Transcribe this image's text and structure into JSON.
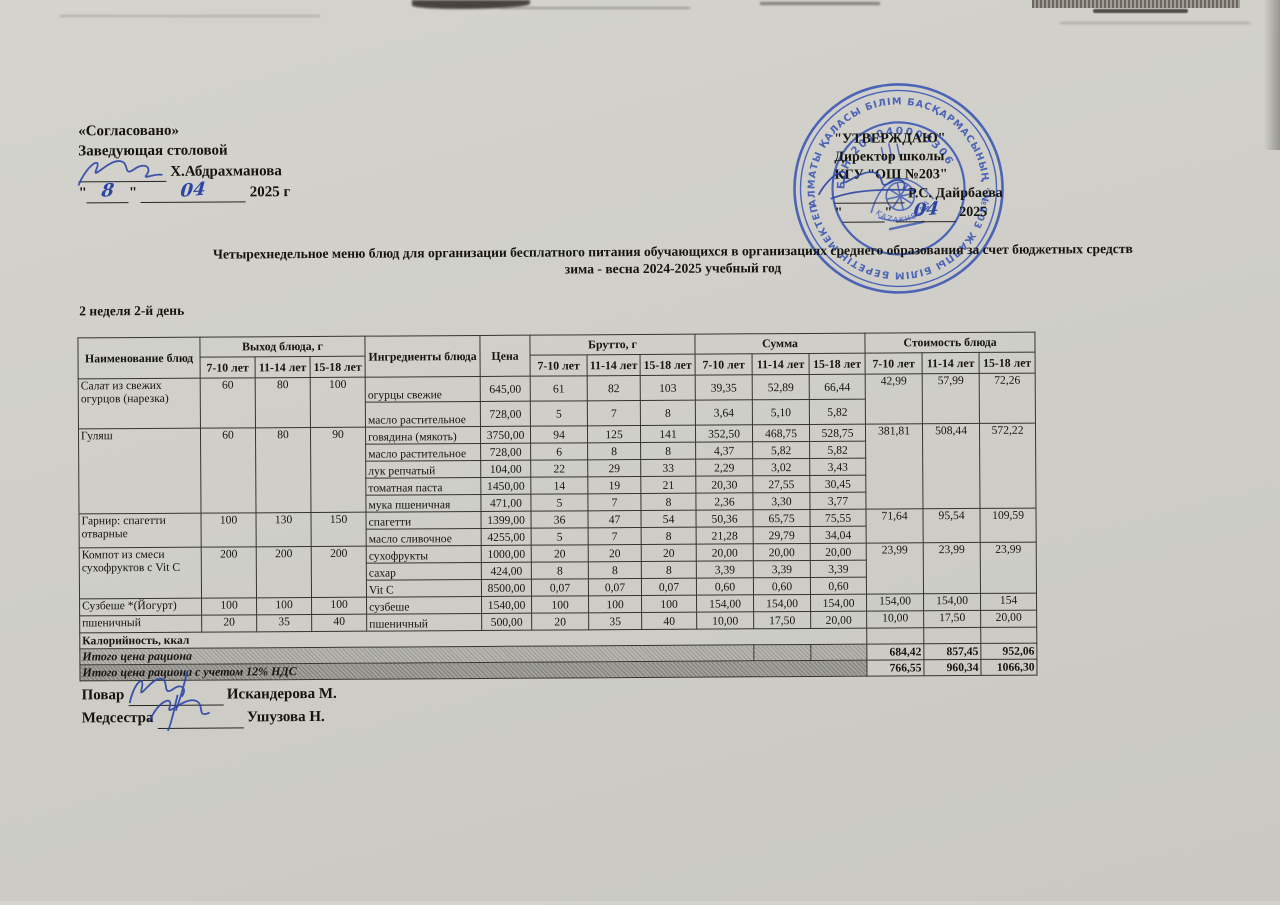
{
  "approval_left": {
    "line1": "«Согласовано»",
    "line2": "Заведующая столовой",
    "name": "Х.Абдрахманова",
    "day": "8",
    "month": "04",
    "year": "2025 г"
  },
  "approval_right": {
    "line1": "\"УТВЕРЖДАЮ\"",
    "line2": "Директор школы",
    "line3": "КГУ  \"ОШ №203\"",
    "name": "Р.С. Дайрбаева",
    "month": "04",
    "year": "2025"
  },
  "stamp": {
    "ring_text": "АЛМАТЫ ҚАЛАСЫ БІЛІМ БАСҚАРМАСЫНЫҢ \"№203 ЖАЛПЫ БІЛІМ БЕРЕТІН МЕКТЕП\" КОММУНАЛДЫҚ МЕМЛЕКЕТТІК МЕКЕМЕСІ",
    "bsn": "БСН 201040005306",
    "bottom": "KAZAKHSTAN",
    "color": "#2f4db3"
  },
  "title": {
    "line1": "Четырехнедельное меню блюд для организации бесплатного питания обучающихся в организациях среднего образования за счет бюджетных средств",
    "line2": "зима - весна 2024-2025 учебный год"
  },
  "week_label": "2 неделя 2-й день",
  "table": {
    "headers": {
      "name_col": "Наименование блюд",
      "output_col": "Выход блюда, г",
      "ingredients_col": "Ингредиенты блюда",
      "price_col": "Цена",
      "brutto_col": "Брутто, г",
      "sum_col": "Сумма",
      "cost_col": "Стоимость блюда",
      "ages": [
        "7-10 лет",
        "11-14 лет",
        "15-18 лет"
      ]
    },
    "dishes": [
      {
        "name": "Салат из свежих огурцов (нарезка)",
        "portions": [
          "60",
          "80",
          "100"
        ],
        "cost": [
          "42,99",
          "57,99",
          "72,26"
        ],
        "tall": true,
        "ingredients": [
          {
            "name": "огурцы свежие",
            "price": "645,00",
            "brutto": [
              "61",
              "82",
              "103"
            ],
            "summa": [
              "39,35",
              "52,89",
              "66,44"
            ]
          },
          {
            "name": "масло растительное",
            "price": "728,00",
            "brutto": [
              "5",
              "7",
              "8"
            ],
            "summa": [
              "3,64",
              "5,10",
              "5,82"
            ]
          }
        ]
      },
      {
        "name": "Гуляш",
        "portions": [
          "60",
          "80",
          "90"
        ],
        "cost": [
          "381,81",
          "508,44",
          "572,22"
        ],
        "ingredients": [
          {
            "name": "говядина (мякоть)",
            "price": "3750,00",
            "brutto": [
              "94",
              "125",
              "141"
            ],
            "summa": [
              "352,50",
              "468,75",
              "528,75"
            ]
          },
          {
            "name": "масло растительное",
            "price": "728,00",
            "brutto": [
              "6",
              "8",
              "8"
            ],
            "summa": [
              "4,37",
              "5,82",
              "5,82"
            ]
          },
          {
            "name": "лук репчатый",
            "price": "104,00",
            "brutto": [
              "22",
              "29",
              "33"
            ],
            "summa": [
              "2,29",
              "3,02",
              "3,43"
            ]
          },
          {
            "name": "томатная паста",
            "price": "1450,00",
            "brutto": [
              "14",
              "19",
              "21"
            ],
            "summa": [
              "20,30",
              "27,55",
              "30,45"
            ]
          },
          {
            "name": "мука пшеничная",
            "price": "471,00",
            "brutto": [
              "5",
              "7",
              "8"
            ],
            "summa": [
              "2,36",
              "3,30",
              "3,77"
            ]
          }
        ]
      },
      {
        "name": "Гарнир: спагетти отварные",
        "portions": [
          "100",
          "130",
          "150"
        ],
        "cost": [
          "71,64",
          "95,54",
          "109,59"
        ],
        "ingredients": [
          {
            "name": "спагетти",
            "price": "1399,00",
            "brutto": [
              "36",
              "47",
              "54"
            ],
            "summa": [
              "50,36",
              "65,75",
              "75,55"
            ]
          },
          {
            "name": "масло сливочное",
            "price": "4255,00",
            "brutto": [
              "5",
              "7",
              "8"
            ],
            "summa": [
              "21,28",
              "29,79",
              "34,04"
            ]
          }
        ]
      },
      {
        "name": "Компот из смеси сухофруктов с Vit C",
        "portions": [
          "200",
          "200",
          "200"
        ],
        "cost": [
          "23,99",
          "23,99",
          "23,99"
        ],
        "ingredients": [
          {
            "name": "сухофрукты",
            "price": "1000,00",
            "brutto": [
              "20",
              "20",
              "20"
            ],
            "summa": [
              "20,00",
              "20,00",
              "20,00"
            ]
          },
          {
            "name": "сахар",
            "price": "424,00",
            "brutto": [
              "8",
              "8",
              "8"
            ],
            "summa": [
              "3,39",
              "3,39",
              "3,39"
            ]
          },
          {
            "name": "Vit C",
            "price": "8500,00",
            "brutto": [
              "0,07",
              "0,07",
              "0,07"
            ],
            "summa": [
              "0,60",
              "0,60",
              "0,60"
            ]
          }
        ]
      },
      {
        "name": "Сузбеше *(Йогурт)",
        "portions": [
          "100",
          "100",
          "100"
        ],
        "cost": [
          "154,00",
          "154,00",
          "154"
        ],
        "ingredients": [
          {
            "name": "сузбеше",
            "price": "1540,00",
            "brutto": [
              "100",
              "100",
              "100"
            ],
            "summa": [
              "154,00",
              "154,00",
              "154,00"
            ]
          }
        ]
      },
      {
        "name": "пшеничный",
        "portions": [
          "20",
          "35",
          "40"
        ],
        "cost": [
          "10,00",
          "17,50",
          "20,00"
        ],
        "ingredients": [
          {
            "name": "пшеничный",
            "price": "500,00",
            "brutto": [
              "20",
              "35",
              "40"
            ],
            "summa": [
              "10,00",
              "17,50",
              "20,00"
            ]
          }
        ]
      }
    ],
    "kcal_label": "Калорийность, ккал",
    "total_label": "Итого цена рациона",
    "total_values": [
      "684,42",
      "857,45",
      "952,06"
    ],
    "total_vat_label": "Итого цена рациона с учетом 12% НДС",
    "total_vat_values": [
      "766,55",
      "960,34",
      "1066,30"
    ]
  },
  "footer": {
    "cook_label": "Повар",
    "cook_name": "Искандерова М.",
    "nurse_label": "Медсестра",
    "nurse_name": "Ушузова Н."
  }
}
